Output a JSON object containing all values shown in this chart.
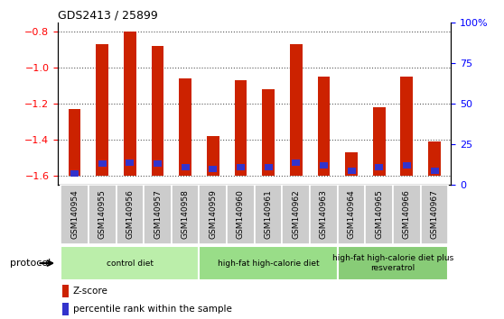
{
  "title": "GDS2413 / 25899",
  "samples": [
    "GSM140954",
    "GSM140955",
    "GSM140956",
    "GSM140957",
    "GSM140958",
    "GSM140959",
    "GSM140960",
    "GSM140961",
    "GSM140962",
    "GSM140963",
    "GSM140964",
    "GSM140965",
    "GSM140966",
    "GSM140967"
  ],
  "zscore": [
    -1.23,
    -0.87,
    -0.8,
    -0.88,
    -1.06,
    -1.38,
    -1.07,
    -1.12,
    -0.87,
    -1.05,
    -1.47,
    -1.22,
    -1.05,
    -1.41
  ],
  "percentile": [
    7,
    13,
    14,
    13,
    11,
    10,
    11,
    11,
    14,
    12,
    9,
    11,
    12,
    9
  ],
  "bar_bottom": -1.6,
  "ylim_left": [
    -1.65,
    -0.75
  ],
  "yticks_left": [
    -1.6,
    -1.4,
    -1.2,
    -1.0,
    -0.8
  ],
  "ylim_right": [
    0,
    100
  ],
  "yticks_right": [
    0,
    25,
    50,
    75,
    100
  ],
  "yticklabels_right": [
    "0",
    "25",
    "50",
    "75",
    "100%"
  ],
  "bar_color": "#cc2200",
  "percentile_color": "#3333cc",
  "groups": [
    {
      "label": "control diet",
      "start": 0,
      "end": 4,
      "color": "#bbeeaa"
    },
    {
      "label": "high-fat high-calorie diet",
      "start": 5,
      "end": 9,
      "color": "#99dd88"
    },
    {
      "label": "high-fat high-calorie diet plus\nresveratrol",
      "start": 10,
      "end": 13,
      "color": "#88cc77"
    }
  ],
  "grid_color": "#555555",
  "bg_color": "#ffffff",
  "sample_bg_color": "#cccccc",
  "protocol_label": "protocol",
  "legend_zscore": "Z-score",
  "legend_percentile": "percentile rank within the sample",
  "bar_width": 0.45
}
